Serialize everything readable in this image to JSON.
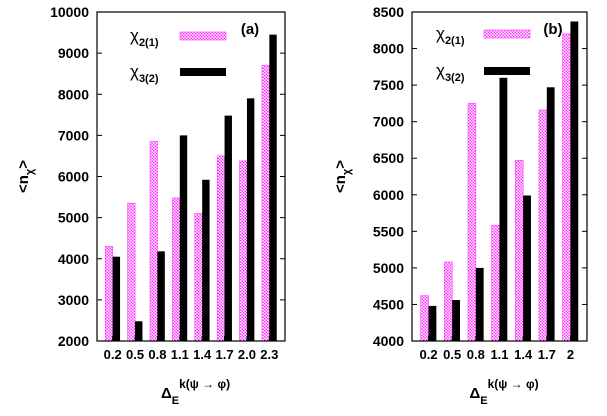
{
  "chart_data": [
    {
      "type": "bar",
      "panel_label": "(a)",
      "ylabel_main": "<n",
      "ylabel_sub": "χ",
      "ylabel_end": ">",
      "xlabel_main": "Δ",
      "xlabel_sub": "E",
      "xlabel_sup": "k(ψ → φ)",
      "ylim": [
        2000,
        10000
      ],
      "yticks": [
        2000,
        3000,
        4000,
        5000,
        6000,
        7000,
        8000,
        9000,
        10000
      ],
      "categories": [
        "0.2",
        "0.5",
        "0.8",
        "1.1",
        "1.4",
        "1.7",
        "2.0",
        "2.3"
      ],
      "series": [
        {
          "name_main": "χ",
          "name_sub": "2(1)",
          "color": "#ff33ff",
          "pattern": "checker",
          "values": [
            4300,
            5350,
            6850,
            5480,
            5100,
            6500,
            6380,
            8700
          ]
        },
        {
          "name_main": "χ",
          "name_sub": "3(2)",
          "color": "#000000",
          "pattern": "solid",
          "values": [
            4050,
            2480,
            4180,
            7000,
            5920,
            7480,
            7900,
            9450
          ]
        }
      ]
    },
    {
      "type": "bar",
      "panel_label": "(b)",
      "ylabel_main": "<n",
      "ylabel_sub": "χ",
      "ylabel_end": ">",
      "xlabel_main": "Δ",
      "xlabel_sub": "E",
      "xlabel_sup": "k(ψ → φ)",
      "ylim": [
        4000,
        8500
      ],
      "yticks": [
        4000,
        4500,
        5000,
        5500,
        6000,
        6500,
        7000,
        7500,
        8000,
        8500
      ],
      "categories": [
        "0.2",
        "0.5",
        "0.8",
        "1.1",
        "1.4",
        "1.7",
        "2"
      ],
      "series": [
        {
          "name_main": "χ",
          "name_sub": "2(1)",
          "color": "#ff33ff",
          "pattern": "checker",
          "values": [
            4620,
            5080,
            7250,
            5580,
            6470,
            7160,
            8200
          ]
        },
        {
          "name_main": "χ",
          "name_sub": "3(2)",
          "color": "#000000",
          "pattern": "solid",
          "values": [
            4480,
            4560,
            5000,
            7600,
            5990,
            7470,
            8370
          ]
        }
      ]
    }
  ]
}
